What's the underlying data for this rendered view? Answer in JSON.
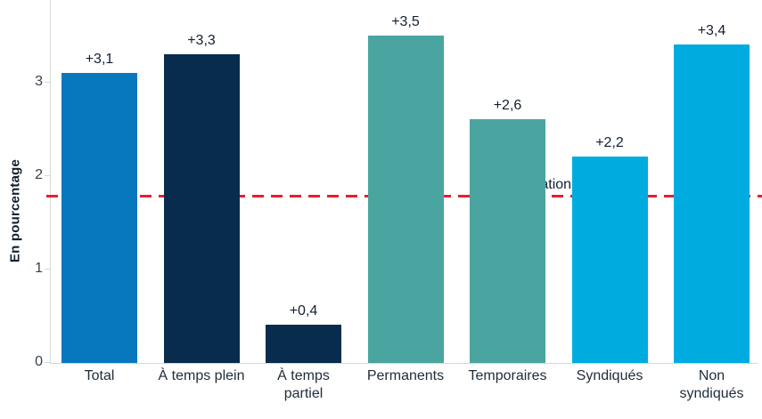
{
  "chart_data": {
    "type": "bar",
    "title": "",
    "ylabel": "En pourcentage",
    "xlabel": "",
    "categories": [
      "Total",
      "À temps plein",
      "À temps\npartiel",
      "Permanents",
      "Temporaires",
      "Syndiqués",
      "Non\nsyndiqués"
    ],
    "values": [
      3.1,
      3.3,
      0.4,
      3.5,
      2.6,
      2.2,
      3.4
    ],
    "value_labels": [
      "+3,1",
      "+3,3",
      "+0,4",
      "+3,5",
      "+2,6",
      "+2,2",
      "+3,4"
    ],
    "bar_colors": [
      "#0878be",
      "#082c4d",
      "#082c4d",
      "#4aa5a0",
      "#4aa5a0",
      "#00acdf",
      "#00acdf"
    ],
    "yticks": [
      0,
      1,
      2,
      3
    ],
    "ylim": [
      0,
      3.85
    ],
    "grid": false,
    "legend": null,
    "reference_line": {
      "label": "Inflation (+1,8)",
      "value": 1.8,
      "color": "#ee1c2d",
      "style": "dashed"
    }
  },
  "colors": {
    "axis": "#d4d7d9",
    "tick_label": "#37424e",
    "value_label": "#121f33",
    "category_label": "#1f2c3a",
    "background": "#ffffff"
  }
}
